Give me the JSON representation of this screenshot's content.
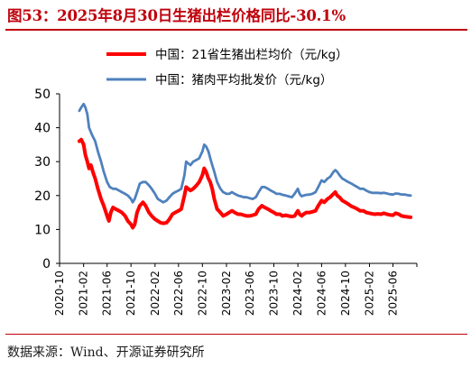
{
  "header": {
    "title": "图53：2025年8月30日生猪出栏价格同比-30.1%"
  },
  "footer": {
    "source": "数据来源：Wind、开源证券研究所"
  },
  "chart_data": {
    "type": "line",
    "ylim": [
      0,
      50
    ],
    "yticks": [
      0,
      10,
      20,
      30,
      40,
      50
    ],
    "xticks": [
      "2020-10",
      "2021-02",
      "2021-06",
      "2021-10",
      "2022-02",
      "2022-06",
      "2022-10",
      "2023-02",
      "2023-06",
      "2023-10",
      "2024-02",
      "2024-06",
      "2024-10",
      "2025-02",
      "2025-06"
    ],
    "grid": false,
    "legend_position": "top-right",
    "series": [
      {
        "name": "中国：21省生猪出栏均价（元/kg）",
        "color": "#ff0000",
        "points": [
          [
            "2021-01-10",
            36.0
          ],
          [
            "2021-01-20",
            36.5
          ],
          [
            "2021-02-01",
            35.0
          ],
          [
            "2021-02-10",
            32.0
          ],
          [
            "2021-02-20",
            30.0
          ],
          [
            "2021-03-01",
            28.0
          ],
          [
            "2021-03-10",
            29.0
          ],
          [
            "2021-03-20",
            27.0
          ],
          [
            "2021-04-01",
            25.0
          ],
          [
            "2021-04-15",
            22.0
          ],
          [
            "2021-05-01",
            19.0
          ],
          [
            "2021-05-15",
            17.0
          ],
          [
            "2021-06-01",
            14.0
          ],
          [
            "2021-06-10",
            12.5
          ],
          [
            "2021-06-20",
            15.0
          ],
          [
            "2021-07-01",
            16.5
          ],
          [
            "2021-07-15",
            16.0
          ],
          [
            "2021-08-01",
            15.5
          ],
          [
            "2021-08-15",
            15.0
          ],
          [
            "2021-09-01",
            14.0
          ],
          [
            "2021-09-15",
            12.5
          ],
          [
            "2021-10-01",
            11.5
          ],
          [
            "2021-10-10",
            10.5
          ],
          [
            "2021-10-20",
            11.5
          ],
          [
            "2021-11-01",
            15.0
          ],
          [
            "2021-11-15",
            17.0
          ],
          [
            "2021-12-01",
            18.0
          ],
          [
            "2021-12-15",
            17.0
          ],
          [
            "2022-01-01",
            15.0
          ],
          [
            "2022-01-15",
            14.0
          ],
          [
            "2022-02-01",
            13.0
          ],
          [
            "2022-02-15",
            12.5
          ],
          [
            "2022-03-01",
            12.0
          ],
          [
            "2022-03-15",
            11.8
          ],
          [
            "2022-04-01",
            12.0
          ],
          [
            "2022-04-15",
            13.0
          ],
          [
            "2022-05-01",
            14.5
          ],
          [
            "2022-05-15",
            15.0
          ],
          [
            "2022-06-01",
            15.5
          ],
          [
            "2022-06-15",
            16.0
          ],
          [
            "2022-07-01",
            20.0
          ],
          [
            "2022-07-10",
            22.5
          ],
          [
            "2022-07-20",
            22.0
          ],
          [
            "2022-08-01",
            21.5
          ],
          [
            "2022-08-15",
            22.0
          ],
          [
            "2022-09-01",
            23.0
          ],
          [
            "2022-09-15",
            24.0
          ],
          [
            "2022-10-01",
            26.0
          ],
          [
            "2022-10-10",
            28.0
          ],
          [
            "2022-10-20",
            27.0
          ],
          [
            "2022-11-01",
            25.0
          ],
          [
            "2022-11-10",
            24.0
          ],
          [
            "2022-11-20",
            22.0
          ],
          [
            "2022-12-01",
            19.0
          ],
          [
            "2022-12-15",
            16.0
          ],
          [
            "2023-01-01",
            15.0
          ],
          [
            "2023-01-15",
            14.0
          ],
          [
            "2023-02-01",
            14.5
          ],
          [
            "2023-02-15",
            15.0
          ],
          [
            "2023-03-01",
            15.5
          ],
          [
            "2023-03-15",
            15.0
          ],
          [
            "2023-04-01",
            14.5
          ],
          [
            "2023-04-15",
            14.5
          ],
          [
            "2023-05-01",
            14.2
          ],
          [
            "2023-05-15",
            14.0
          ],
          [
            "2023-06-01",
            14.0
          ],
          [
            "2023-06-15",
            14.2
          ],
          [
            "2023-07-01",
            14.5
          ],
          [
            "2023-07-15",
            16.0
          ],
          [
            "2023-08-01",
            17.0
          ],
          [
            "2023-08-15",
            16.5
          ],
          [
            "2023-09-01",
            16.0
          ],
          [
            "2023-09-15",
            15.5
          ],
          [
            "2023-10-01",
            15.0
          ],
          [
            "2023-10-15",
            14.5
          ],
          [
            "2023-11-01",
            14.5
          ],
          [
            "2023-11-15",
            14.0
          ],
          [
            "2023-12-01",
            14.2
          ],
          [
            "2023-12-15",
            14.0
          ],
          [
            "2024-01-01",
            13.8
          ],
          [
            "2024-01-15",
            14.0
          ],
          [
            "2024-02-01",
            15.5
          ],
          [
            "2024-02-10",
            14.5
          ],
          [
            "2024-02-20",
            14.0
          ],
          [
            "2024-03-01",
            14.5
          ],
          [
            "2024-03-15",
            15.0
          ],
          [
            "2024-04-01",
            15.0
          ],
          [
            "2024-04-15",
            15.2
          ],
          [
            "2024-05-01",
            15.5
          ],
          [
            "2024-05-15",
            17.0
          ],
          [
            "2024-06-01",
            18.5
          ],
          [
            "2024-06-15",
            18.0
          ],
          [
            "2024-07-01",
            19.0
          ],
          [
            "2024-07-15",
            19.5
          ],
          [
            "2024-08-01",
            20.5
          ],
          [
            "2024-08-10",
            21.0
          ],
          [
            "2024-08-20",
            20.0
          ],
          [
            "2024-09-01",
            19.5
          ],
          [
            "2024-09-15",
            18.5
          ],
          [
            "2024-10-01",
            18.0
          ],
          [
            "2024-10-15",
            17.5
          ],
          [
            "2024-11-01",
            16.8
          ],
          [
            "2024-11-15",
            16.5
          ],
          [
            "2024-12-01",
            16.0
          ],
          [
            "2024-12-15",
            15.5
          ],
          [
            "2025-01-01",
            15.5
          ],
          [
            "2025-01-15",
            15.0
          ],
          [
            "2025-02-01",
            14.8
          ],
          [
            "2025-02-15",
            14.6
          ],
          [
            "2025-03-01",
            14.5
          ],
          [
            "2025-03-15",
            14.6
          ],
          [
            "2025-04-01",
            14.5
          ],
          [
            "2025-04-15",
            14.8
          ],
          [
            "2025-05-01",
            14.5
          ],
          [
            "2025-05-15",
            14.3
          ],
          [
            "2025-06-01",
            14.2
          ],
          [
            "2025-06-15",
            14.8
          ],
          [
            "2025-07-01",
            14.5
          ],
          [
            "2025-07-15",
            14.0
          ],
          [
            "2025-08-01",
            13.8
          ],
          [
            "2025-08-15",
            13.7
          ],
          [
            "2025-08-30",
            13.6
          ]
        ]
      },
      {
        "name": "中国：猪肉平均批发价（元/kg）",
        "color": "#4f81bd",
        "points": [
          [
            "2021-01-10",
            45.0
          ],
          [
            "2021-01-20",
            46.0
          ],
          [
            "2021-02-01",
            47.0
          ],
          [
            "2021-02-10",
            46.0
          ],
          [
            "2021-02-20",
            44.0
          ],
          [
            "2021-03-01",
            40.0
          ],
          [
            "2021-03-15",
            38.0
          ],
          [
            "2021-04-01",
            36.0
          ],
          [
            "2021-04-15",
            33.0
          ],
          [
            "2021-05-01",
            30.0
          ],
          [
            "2021-05-15",
            27.0
          ],
          [
            "2021-06-01",
            24.0
          ],
          [
            "2021-06-15",
            22.5
          ],
          [
            "2021-07-01",
            22.0
          ],
          [
            "2021-07-15",
            22.0
          ],
          [
            "2021-08-01",
            21.5
          ],
          [
            "2021-08-15",
            21.0
          ],
          [
            "2021-09-01",
            20.5
          ],
          [
            "2021-09-15",
            20.0
          ],
          [
            "2021-10-01",
            19.0
          ],
          [
            "2021-10-10",
            18.0
          ],
          [
            "2021-10-20",
            19.0
          ],
          [
            "2021-11-01",
            21.0
          ],
          [
            "2021-11-15",
            23.5
          ],
          [
            "2021-12-01",
            24.0
          ],
          [
            "2021-12-15",
            24.0
          ],
          [
            "2022-01-01",
            23.0
          ],
          [
            "2022-01-15",
            22.0
          ],
          [
            "2022-02-01",
            20.5
          ],
          [
            "2022-02-15",
            19.0
          ],
          [
            "2022-03-01",
            18.5
          ],
          [
            "2022-03-15",
            18.0
          ],
          [
            "2022-04-01",
            18.5
          ],
          [
            "2022-04-15",
            19.5
          ],
          [
            "2022-05-01",
            20.5
          ],
          [
            "2022-05-15",
            21.0
          ],
          [
            "2022-06-01",
            21.5
          ],
          [
            "2022-06-15",
            22.0
          ],
          [
            "2022-07-01",
            26.0
          ],
          [
            "2022-07-10",
            30.0
          ],
          [
            "2022-07-20",
            29.5
          ],
          [
            "2022-08-01",
            29.0
          ],
          [
            "2022-08-15",
            30.0
          ],
          [
            "2022-09-01",
            30.5
          ],
          [
            "2022-09-15",
            31.0
          ],
          [
            "2022-10-01",
            33.0
          ],
          [
            "2022-10-10",
            35.0
          ],
          [
            "2022-10-20",
            34.5
          ],
          [
            "2022-11-01",
            33.0
          ],
          [
            "2022-11-10",
            31.0
          ],
          [
            "2022-11-20",
            29.0
          ],
          [
            "2022-12-01",
            27.0
          ],
          [
            "2022-12-15",
            24.0
          ],
          [
            "2023-01-01",
            22.0
          ],
          [
            "2023-01-15",
            21.0
          ],
          [
            "2023-02-01",
            20.5
          ],
          [
            "2023-02-15",
            20.5
          ],
          [
            "2023-03-01",
            21.0
          ],
          [
            "2023-03-15",
            20.5
          ],
          [
            "2023-04-01",
            20.0
          ],
          [
            "2023-04-15",
            19.8
          ],
          [
            "2023-05-01",
            19.5
          ],
          [
            "2023-05-15",
            19.5
          ],
          [
            "2023-06-01",
            19.2
          ],
          [
            "2023-06-15",
            19.0
          ],
          [
            "2023-07-01",
            19.5
          ],
          [
            "2023-07-15",
            21.0
          ],
          [
            "2023-08-01",
            22.5
          ],
          [
            "2023-08-15",
            22.5
          ],
          [
            "2023-09-01",
            22.0
          ],
          [
            "2023-09-15",
            21.5
          ],
          [
            "2023-10-01",
            21.0
          ],
          [
            "2023-10-15",
            20.5
          ],
          [
            "2023-11-01",
            20.5
          ],
          [
            "2023-11-15",
            20.2
          ],
          [
            "2023-12-01",
            20.0
          ],
          [
            "2023-12-15",
            19.8
          ],
          [
            "2024-01-01",
            19.5
          ],
          [
            "2024-01-15",
            20.5
          ],
          [
            "2024-02-01",
            22.0
          ],
          [
            "2024-02-10",
            20.5
          ],
          [
            "2024-02-20",
            19.8
          ],
          [
            "2024-03-01",
            20.0
          ],
          [
            "2024-03-15",
            20.2
          ],
          [
            "2024-04-01",
            20.3
          ],
          [
            "2024-04-15",
            20.5
          ],
          [
            "2024-05-01",
            21.0
          ],
          [
            "2024-05-15",
            22.5
          ],
          [
            "2024-06-01",
            24.5
          ],
          [
            "2024-06-15",
            24.0
          ],
          [
            "2024-07-01",
            25.0
          ],
          [
            "2024-07-15",
            25.5
          ],
          [
            "2024-08-01",
            27.0
          ],
          [
            "2024-08-10",
            27.5
          ],
          [
            "2024-08-20",
            27.0
          ],
          [
            "2024-09-01",
            26.0
          ],
          [
            "2024-09-15",
            25.0
          ],
          [
            "2024-10-01",
            24.5
          ],
          [
            "2024-10-15",
            24.0
          ],
          [
            "2024-11-01",
            23.5
          ],
          [
            "2024-11-15",
            23.0
          ],
          [
            "2024-12-01",
            22.5
          ],
          [
            "2024-12-15",
            22.0
          ],
          [
            "2025-01-01",
            22.0
          ],
          [
            "2025-01-15",
            21.5
          ],
          [
            "2025-02-01",
            21.0
          ],
          [
            "2025-02-15",
            20.8
          ],
          [
            "2025-03-01",
            20.8
          ],
          [
            "2025-03-15",
            20.8
          ],
          [
            "2025-04-01",
            20.7
          ],
          [
            "2025-04-15",
            20.8
          ],
          [
            "2025-05-01",
            20.6
          ],
          [
            "2025-05-15",
            20.4
          ],
          [
            "2025-06-01",
            20.3
          ],
          [
            "2025-06-15",
            20.6
          ],
          [
            "2025-07-01",
            20.5
          ],
          [
            "2025-07-15",
            20.3
          ],
          [
            "2025-08-01",
            20.3
          ],
          [
            "2025-08-15",
            20.1
          ],
          [
            "2025-08-30",
            20.0
          ]
        ]
      }
    ]
  }
}
